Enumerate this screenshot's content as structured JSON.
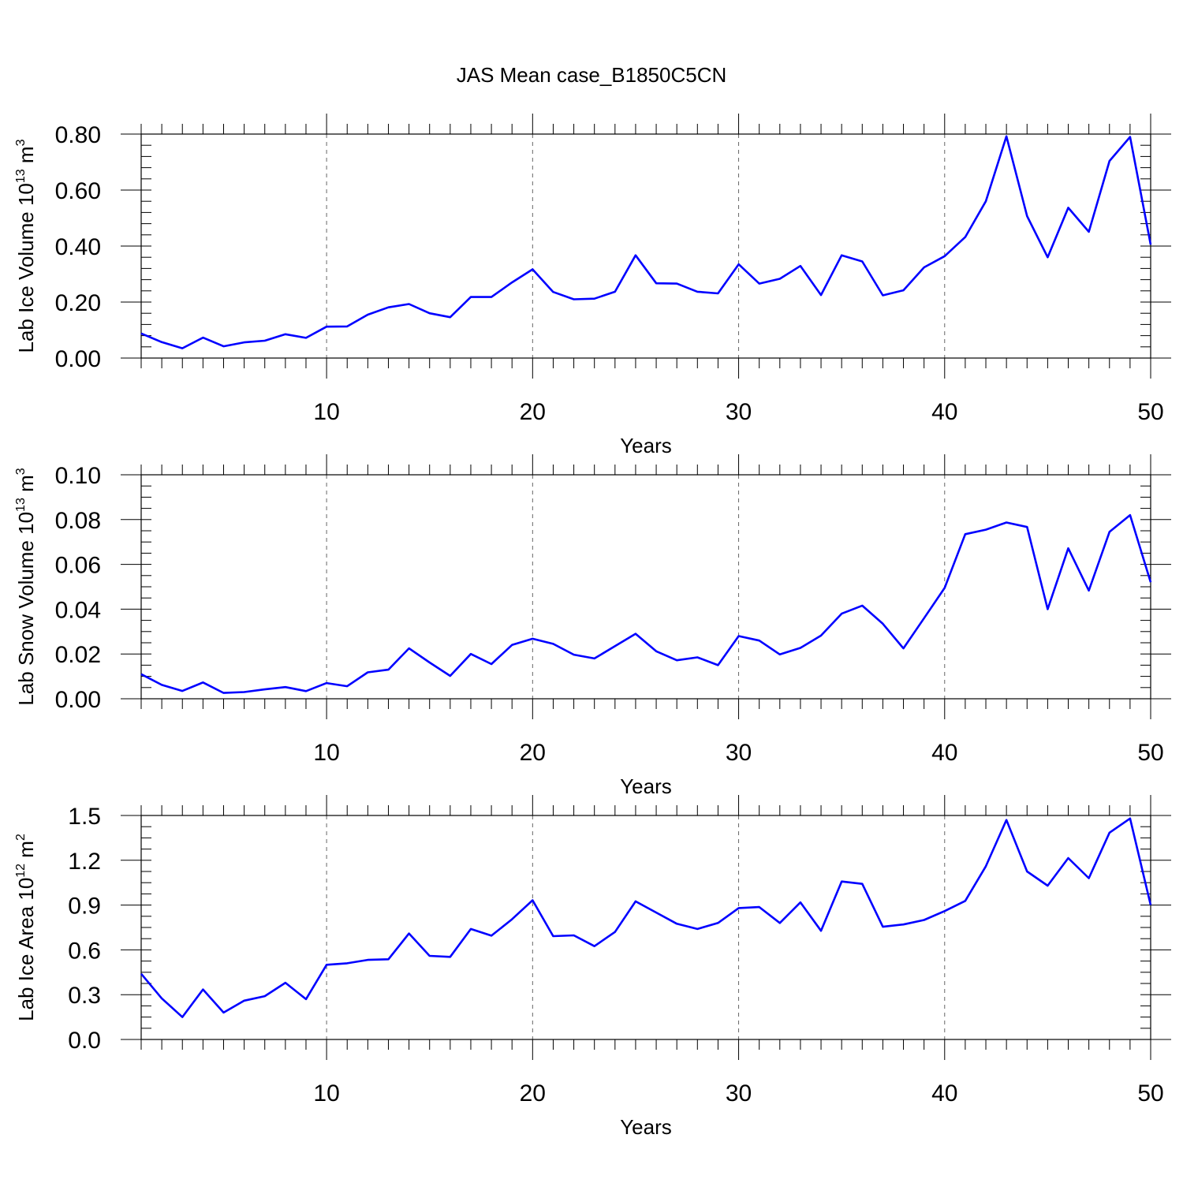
{
  "chart_data": [
    {
      "type": "line",
      "title": "JAS Mean case_B1850C5CN",
      "ylabel": {
        "main": "Lab Ice Volume 10",
        "sup": "13",
        "mid": " m",
        "sup2": "3"
      },
      "xlabel": "Years",
      "xlim": [
        1,
        50
      ],
      "ylim": [
        0,
        0.8
      ],
      "xticks": [
        10,
        20,
        30,
        40,
        50
      ],
      "yticks": [
        0,
        0.2,
        0.4,
        0.6,
        0.8
      ],
      "ytick_labels": [
        "0.00",
        "0.20",
        "0.40",
        "0.60",
        "0.80"
      ],
      "yminor_step": 0.04,
      "grid": "dashed vertical at major x ticks",
      "series": [
        {
          "name": "Lab Ice Volume",
          "color": "#0000ff",
          "x": [
            1,
            2,
            3,
            4,
            5,
            6,
            7,
            8,
            9,
            10,
            11,
            12,
            13,
            14,
            15,
            16,
            17,
            18,
            19,
            20,
            21,
            22,
            23,
            24,
            25,
            26,
            27,
            28,
            29,
            30,
            31,
            32,
            33,
            34,
            35,
            36,
            37,
            38,
            39,
            40,
            41,
            42,
            43,
            44,
            45,
            46,
            47,
            48,
            49,
            50
          ],
          "y": [
            0.088,
            0.057,
            0.035,
            0.073,
            0.042,
            0.056,
            0.062,
            0.085,
            0.072,
            0.112,
            0.113,
            0.155,
            0.181,
            0.193,
            0.16,
            0.146,
            0.218,
            0.218,
            0.27,
            0.317,
            0.236,
            0.21,
            0.212,
            0.237,
            0.367,
            0.267,
            0.266,
            0.237,
            0.231,
            0.335,
            0.266,
            0.283,
            0.329,
            0.225,
            0.367,
            0.345,
            0.224,
            0.242,
            0.324,
            0.364,
            0.432,
            0.56,
            0.792,
            0.507,
            0.36,
            0.537,
            0.451,
            0.704,
            0.79,
            0.405
          ]
        }
      ]
    },
    {
      "type": "line",
      "ylabel": {
        "main": "Lab Snow Volume 10",
        "sup": "13",
        "mid": " m",
        "sup2": "3"
      },
      "xlabel": "Years",
      "xlim": [
        1,
        50
      ],
      "ylim": [
        0,
        0.1
      ],
      "xticks": [
        10,
        20,
        30,
        40,
        50
      ],
      "yticks": [
        0,
        0.02,
        0.04,
        0.06,
        0.08,
        0.1
      ],
      "ytick_labels": [
        "0.00",
        "0.02",
        "0.04",
        "0.06",
        "0.08",
        "0.10"
      ],
      "yminor_step": 0.005,
      "grid": "dashed vertical at major x ticks",
      "series": [
        {
          "name": "Lab Snow Volume",
          "color": "#0000ff",
          "x": [
            1,
            2,
            3,
            4,
            5,
            6,
            7,
            8,
            9,
            10,
            11,
            12,
            13,
            14,
            15,
            16,
            17,
            18,
            19,
            20,
            21,
            22,
            23,
            24,
            25,
            26,
            27,
            28,
            29,
            30,
            31,
            32,
            33,
            34,
            35,
            36,
            37,
            38,
            39,
            40,
            41,
            42,
            43,
            44,
            45,
            46,
            47,
            48,
            49,
            50
          ],
          "y": [
            0.011,
            0.0062,
            0.0035,
            0.0073,
            0.0026,
            0.003,
            0.0042,
            0.0052,
            0.0034,
            0.007,
            0.0056,
            0.0118,
            0.013,
            0.0225,
            0.0162,
            0.0102,
            0.02,
            0.0155,
            0.024,
            0.0268,
            0.0245,
            0.0197,
            0.018,
            0.0235,
            0.029,
            0.0212,
            0.0172,
            0.0185,
            0.015,
            0.028,
            0.026,
            0.0198,
            0.0227,
            0.0282,
            0.038,
            0.0416,
            0.0335,
            0.0225,
            0.036,
            0.0495,
            0.0735,
            0.0755,
            0.0787,
            0.0767,
            0.04,
            0.0672,
            0.0483,
            0.0745,
            0.082,
            0.052
          ]
        }
      ]
    },
    {
      "type": "line",
      "ylabel": {
        "main": "Lab Ice Area 10",
        "sup": "12",
        "mid": " m",
        "sup2": "2"
      },
      "xlabel": "Years",
      "xlim": [
        1,
        50
      ],
      "ylim": [
        0,
        1.5
      ],
      "xticks": [
        10,
        20,
        30,
        40,
        50
      ],
      "yticks": [
        0,
        0.3,
        0.6,
        0.9,
        1.2,
        1.5
      ],
      "ytick_labels": [
        "0.0",
        "0.3",
        "0.6",
        "0.9",
        "1.2",
        "1.5"
      ],
      "yminor_step": 0.075,
      "grid": "dashed vertical at major x ticks",
      "series": [
        {
          "name": "Lab Ice Area",
          "color": "#0000ff",
          "x": [
            1,
            2,
            3,
            4,
            5,
            6,
            7,
            8,
            9,
            10,
            11,
            12,
            13,
            14,
            15,
            16,
            17,
            18,
            19,
            20,
            21,
            22,
            23,
            24,
            25,
            26,
            27,
            28,
            29,
            30,
            31,
            32,
            33,
            34,
            35,
            36,
            37,
            38,
            39,
            40,
            41,
            42,
            43,
            44,
            45,
            46,
            47,
            48,
            49,
            50
          ],
          "y": [
            0.44,
            0.275,
            0.15,
            0.335,
            0.18,
            0.26,
            0.29,
            0.38,
            0.27,
            0.5,
            0.51,
            0.533,
            0.537,
            0.71,
            0.56,
            0.553,
            0.74,
            0.695,
            0.805,
            0.932,
            0.692,
            0.697,
            0.625,
            0.72,
            0.925,
            0.85,
            0.775,
            0.74,
            0.78,
            0.88,
            0.887,
            0.78,
            0.918,
            0.728,
            1.058,
            1.042,
            0.755,
            0.77,
            0.8,
            0.86,
            0.928,
            1.16,
            1.47,
            1.125,
            1.03,
            1.215,
            1.08,
            1.385,
            1.48,
            0.9
          ]
        }
      ]
    }
  ]
}
